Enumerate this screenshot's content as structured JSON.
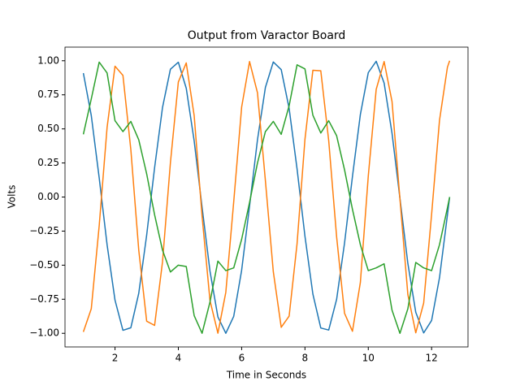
{
  "chart_data": {
    "type": "line",
    "title": "Output from Varactor Board",
    "x_label": "Time in Seconds",
    "y_label": "Volts",
    "x": [
      1.0,
      1.25,
      1.5,
      1.75,
      2.0,
      2.25,
      2.5,
      2.75,
      3.0,
      3.25,
      3.5,
      3.75,
      4.0,
      4.25,
      4.5,
      4.75,
      5.0,
      5.25,
      5.5,
      5.75,
      6.0,
      6.25,
      6.5,
      6.75,
      7.0,
      7.25,
      7.5,
      7.75,
      8.0,
      8.25,
      8.5,
      8.75,
      9.0,
      9.25,
      9.5,
      9.75,
      10.0,
      10.25,
      10.5,
      10.75,
      11.0,
      11.25,
      11.5,
      11.75,
      12.0,
      12.25,
      12.5,
      12.57
    ],
    "series": [
      {
        "color": "#1f77b4",
        "values": [
          0.909,
          0.598,
          0.141,
          -0.351,
          -0.757,
          -0.978,
          -0.959,
          -0.706,
          -0.279,
          0.215,
          0.657,
          0.938,
          0.989,
          0.798,
          0.412,
          -0.075,
          -0.544,
          -0.88,
          -1.0,
          -0.875,
          -0.537,
          -0.066,
          0.42,
          0.804,
          0.991,
          0.935,
          0.65,
          0.207,
          -0.288,
          -0.712,
          -0.961,
          -0.976,
          -0.751,
          -0.338,
          0.15,
          0.606,
          0.913,
          0.996,
          0.837,
          0.468,
          -0.009,
          -0.487,
          -0.846,
          -0.997,
          -0.906,
          -0.592,
          -0.132,
          0.0
        ]
      },
      {
        "color": "#ff7f0e",
        "values": [
          -0.99,
          -0.82,
          -0.211,
          0.512,
          0.96,
          0.893,
          0.347,
          -0.39,
          -0.911,
          -0.942,
          -0.476,
          0.252,
          0.844,
          0.984,
          0.598,
          -0.141,
          -0.76,
          -0.999,
          -0.699,
          -0.034,
          0.66,
          0.994,
          0.765,
          0.12,
          -0.548,
          -0.956,
          -0.874,
          -0.343,
          0.424,
          0.93,
          0.926,
          0.414,
          -0.292,
          -0.853,
          -0.985,
          -0.627,
          0.154,
          0.79,
          0.994,
          0.701,
          -0.013,
          -0.715,
          -0.996,
          -0.778,
          -0.128,
          0.563,
          0.952,
          1.0
        ]
      },
      {
        "color": "#2ca02c",
        "values": [
          0.46,
          0.72,
          0.99,
          0.91,
          0.56,
          0.48,
          0.555,
          0.42,
          0.17,
          -0.13,
          -0.39,
          -0.55,
          -0.5,
          -0.51,
          -0.87,
          -1.0,
          -0.77,
          -0.47,
          -0.54,
          -0.52,
          -0.31,
          -0.04,
          0.25,
          0.48,
          0.555,
          0.46,
          0.67,
          0.97,
          0.94,
          0.6,
          0.47,
          0.56,
          0.45,
          0.2,
          -0.09,
          -0.35,
          -0.54,
          -0.52,
          -0.49,
          -0.83,
          -1.0,
          -0.82,
          -0.48,
          -0.52,
          -0.54,
          -0.35,
          -0.08,
          0.0
        ]
      }
    ],
    "xlim": [
      0.42,
      13.15
    ],
    "xticks": [
      2,
      4,
      6,
      8,
      10,
      12
    ],
    "ylim": [
      -1.1,
      1.1
    ],
    "yticks": [
      {
        "value": -1,
        "label": "−1.00"
      },
      {
        "value": -0.75,
        "label": "−0.75"
      },
      {
        "value": -0.5,
        "label": "−0.50"
      },
      {
        "value": -0.25,
        "label": "−0.25"
      },
      {
        "value": 0,
        "label": "0.00"
      },
      {
        "value": 0.25,
        "label": "0.25"
      },
      {
        "value": 0.5,
        "label": "0.50"
      },
      {
        "value": 0.75,
        "label": "0.75"
      },
      {
        "value": 1,
        "label": "1.00"
      }
    ],
    "grid": false
  }
}
